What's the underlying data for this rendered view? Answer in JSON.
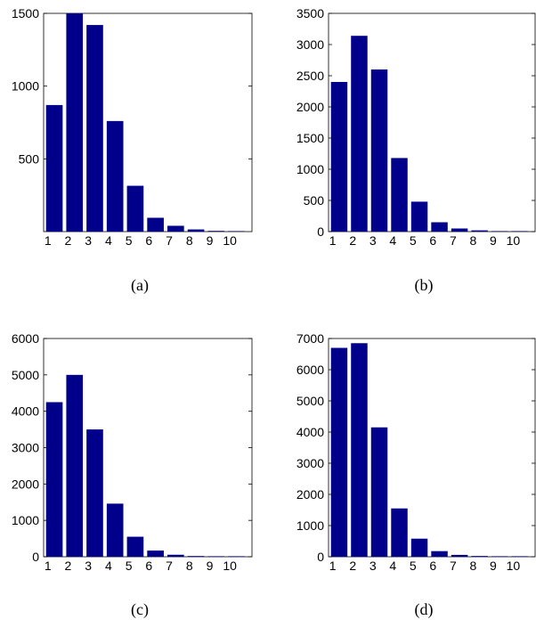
{
  "colors": {
    "bar": "#00008b",
    "axis": "#000000",
    "background": "#ffffff"
  },
  "chart_data": [
    {
      "type": "bar",
      "caption": "(a)",
      "categories": [
        "1",
        "2",
        "3",
        "4",
        "5",
        "6",
        "7",
        "8",
        "9",
        "10"
      ],
      "values": [
        870,
        1500,
        1420,
        760,
        315,
        95,
        40,
        15,
        5,
        3
      ],
      "ylim": [
        0,
        1500
      ],
      "yticks": [
        500,
        1000,
        1500
      ],
      "ytick_labels": [
        "500",
        "1000",
        "1500"
      ],
      "grid": false
    },
    {
      "type": "bar",
      "caption": "(b)",
      "categories": [
        "1",
        "2",
        "3",
        "4",
        "5",
        "6",
        "7",
        "8",
        "9",
        "10"
      ],
      "values": [
        2400,
        3140,
        2600,
        1180,
        480,
        150,
        50,
        20,
        8,
        3
      ],
      "ylim": [
        0,
        3500
      ],
      "yticks": [
        0,
        500,
        1000,
        1500,
        2000,
        2500,
        3000,
        3500
      ],
      "ytick_labels": [
        "0",
        "500",
        "1000",
        "1500",
        "2000",
        "2500",
        "3000",
        "3500"
      ],
      "grid": false
    },
    {
      "type": "bar",
      "caption": "(c)",
      "categories": [
        "1",
        "2",
        "3",
        "4",
        "5",
        "6",
        "7",
        "8",
        "9",
        "10"
      ],
      "values": [
        4250,
        5000,
        3500,
        1460,
        550,
        170,
        55,
        20,
        8,
        3
      ],
      "ylim": [
        0,
        6000
      ],
      "yticks": [
        0,
        1000,
        2000,
        3000,
        4000,
        5000,
        6000
      ],
      "ytick_labels": [
        "0",
        "1000",
        "2000",
        "3000",
        "4000",
        "5000",
        "6000"
      ],
      "grid": false
    },
    {
      "type": "bar",
      "caption": "(d)",
      "categories": [
        "1",
        "2",
        "3",
        "4",
        "5",
        "6",
        "7",
        "8",
        "9",
        "10"
      ],
      "values": [
        6700,
        6850,
        4150,
        1550,
        580,
        180,
        60,
        25,
        10,
        5
      ],
      "ylim": [
        0,
        7000
      ],
      "yticks": [
        0,
        1000,
        2000,
        3000,
        4000,
        5000,
        6000,
        7000
      ],
      "ytick_labels": [
        "0",
        "1000",
        "2000",
        "3000",
        "4000",
        "5000",
        "6000",
        "7000"
      ],
      "grid": false
    }
  ]
}
